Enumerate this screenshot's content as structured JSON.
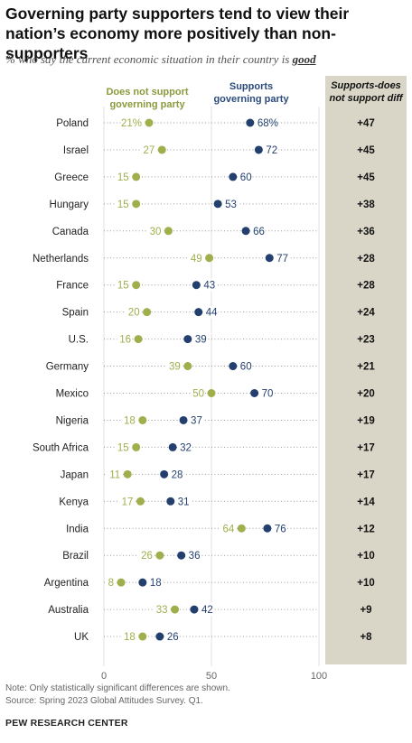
{
  "title": "Governing party supporters tend to view their nation’s economy more positively than non-supporters",
  "subtitle_prefix": "% who say the current economic situation in their country is ",
  "subtitle_emphasis": "good",
  "legend": {
    "not_support": "Does not support governing party",
    "support": "Supports governing party",
    "diff_header": "Supports-does not support diff"
  },
  "colors": {
    "not_support": "#a0ae4c",
    "support": "#233f6e",
    "diff_bg": "#d9d6c8"
  },
  "chart_data": {
    "type": "dot",
    "x_ticks": [
      0,
      50,
      100
    ],
    "xlim": [
      0,
      100
    ],
    "categories": [
      "Poland",
      "Israel",
      "Greece",
      "Hungary",
      "Canada",
      "Netherlands",
      "France",
      "Spain",
      "U.S.",
      "Germany",
      "Mexico",
      "Nigeria",
      "South Africa",
      "Japan",
      "Kenya",
      "India",
      "Brazil",
      "Argentina",
      "Australia",
      "UK"
    ],
    "series": [
      {
        "name": "Does not support governing party",
        "values": [
          21,
          27,
          15,
          15,
          30,
          49,
          15,
          20,
          16,
          39,
          50,
          18,
          15,
          11,
          17,
          64,
          26,
          8,
          33,
          18
        ]
      },
      {
        "name": "Supports governing party",
        "values": [
          68,
          72,
          60,
          53,
          66,
          77,
          43,
          44,
          39,
          60,
          70,
          37,
          32,
          28,
          31,
          76,
          36,
          18,
          42,
          26
        ]
      }
    ],
    "diff_labels": [
      "+47",
      "+45",
      "+45",
      "+38",
      "+36",
      "+28",
      "+28",
      "+24",
      "+23",
      "+21",
      "+20",
      "+19",
      "+17",
      "+17",
      "+14",
      "+12",
      "+10",
      "+10",
      "+9",
      "+8"
    ],
    "first_row_suffix": "%"
  },
  "notes": {
    "note": "Note: Only statistically significant differences are shown.",
    "source": "Source: Spring 2023 Global Attitudes Survey. Q1."
  },
  "brand": "PEW RESEARCH CENTER"
}
